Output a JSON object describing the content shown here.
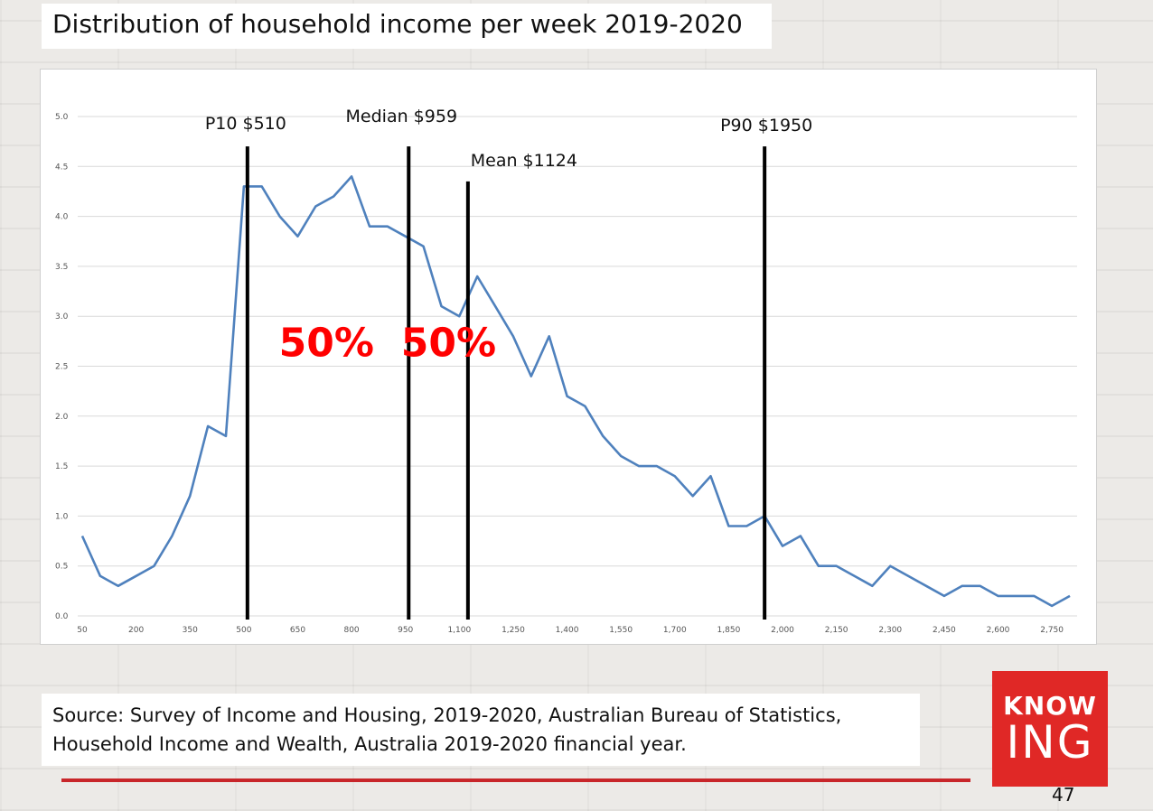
{
  "slide": {
    "title": "Distribution of household income per week 2019-2020",
    "source_line1": "Source: Survey of Income and Housing, 2019-2020, Australian Bureau of Statistics,",
    "source_line2": "Household  Income and Wealth, Australia 2019-2020 financial year.",
    "logo_top": "KNOW",
    "logo_bottom": "ING",
    "page_number": "47",
    "colors": {
      "accent": "#c8262a",
      "logo_bg": "#e02826",
      "series": "#4f81bd",
      "highlight_text": "#ff0000"
    }
  },
  "chart_data": {
    "type": "line",
    "title": "",
    "xlabel": "",
    "ylabel": "",
    "ylim": [
      0,
      5
    ],
    "xlim": [
      50,
      2800
    ],
    "grid": true,
    "y_ticks": [
      "0.0",
      "0.5",
      "1.0",
      "1.5",
      "2.0",
      "2.5",
      "3.0",
      "3.5",
      "4.0",
      "4.5",
      "5.0"
    ],
    "x_ticks": [
      "50",
      "200",
      "350",
      "500",
      "650",
      "800",
      "950",
      "1,100",
      "1,250",
      "1,400",
      "1,550",
      "1,700",
      "1,850",
      "2,000",
      "2,150",
      "2,300",
      "2,450",
      "2,600",
      "2,750"
    ],
    "series": [
      {
        "x": [
          50,
          100,
          150,
          200,
          250,
          300,
          350,
          400,
          450,
          500,
          550,
          600,
          650,
          700,
          750,
          800,
          850,
          900,
          950,
          1000,
          1050,
          1100,
          1150,
          1200,
          1250,
          1300,
          1350,
          1400,
          1450,
          1500,
          1550,
          1600,
          1650,
          1700,
          1750,
          1800,
          1850,
          1900,
          1950,
          2000,
          2050,
          2100,
          2150,
          2200,
          2250,
          2300,
          2350,
          2400,
          2450,
          2500,
          2550,
          2600,
          2650,
          2700,
          2750,
          2800
        ],
        "values": [
          0.8,
          0.4,
          0.3,
          0.4,
          0.5,
          0.8,
          1.2,
          1.9,
          1.8,
          4.3,
          4.3,
          4.0,
          3.8,
          4.1,
          4.2,
          4.4,
          3.9,
          3.9,
          3.8,
          3.7,
          3.1,
          3.0,
          3.4,
          3.1,
          2.8,
          2.4,
          2.8,
          2.2,
          2.1,
          1.8,
          1.6,
          1.5,
          1.5,
          1.4,
          1.2,
          1.4,
          0.9,
          0.9,
          1.0,
          0.7,
          0.8,
          0.5,
          0.5,
          0.4,
          0.3,
          0.5,
          0.4,
          0.3,
          0.2,
          0.3,
          0.3,
          0.2,
          0.2,
          0.2,
          0.1,
          0.2
        ]
      }
    ],
    "markers": [
      {
        "label": "P10 $510",
        "x": 510,
        "top": 4.7
      },
      {
        "label": "Median $959",
        "x": 959,
        "top": 4.7
      },
      {
        "label": "Mean $1124",
        "x": 1124,
        "top": 4.35
      },
      {
        "label": "P90 $1950",
        "x": 1950,
        "top": 4.7
      }
    ],
    "annotations": [
      {
        "text": "50%",
        "x": 730,
        "y": 2.6
      },
      {
        "text": "50%",
        "x": 1070,
        "y": 2.6
      }
    ]
  }
}
